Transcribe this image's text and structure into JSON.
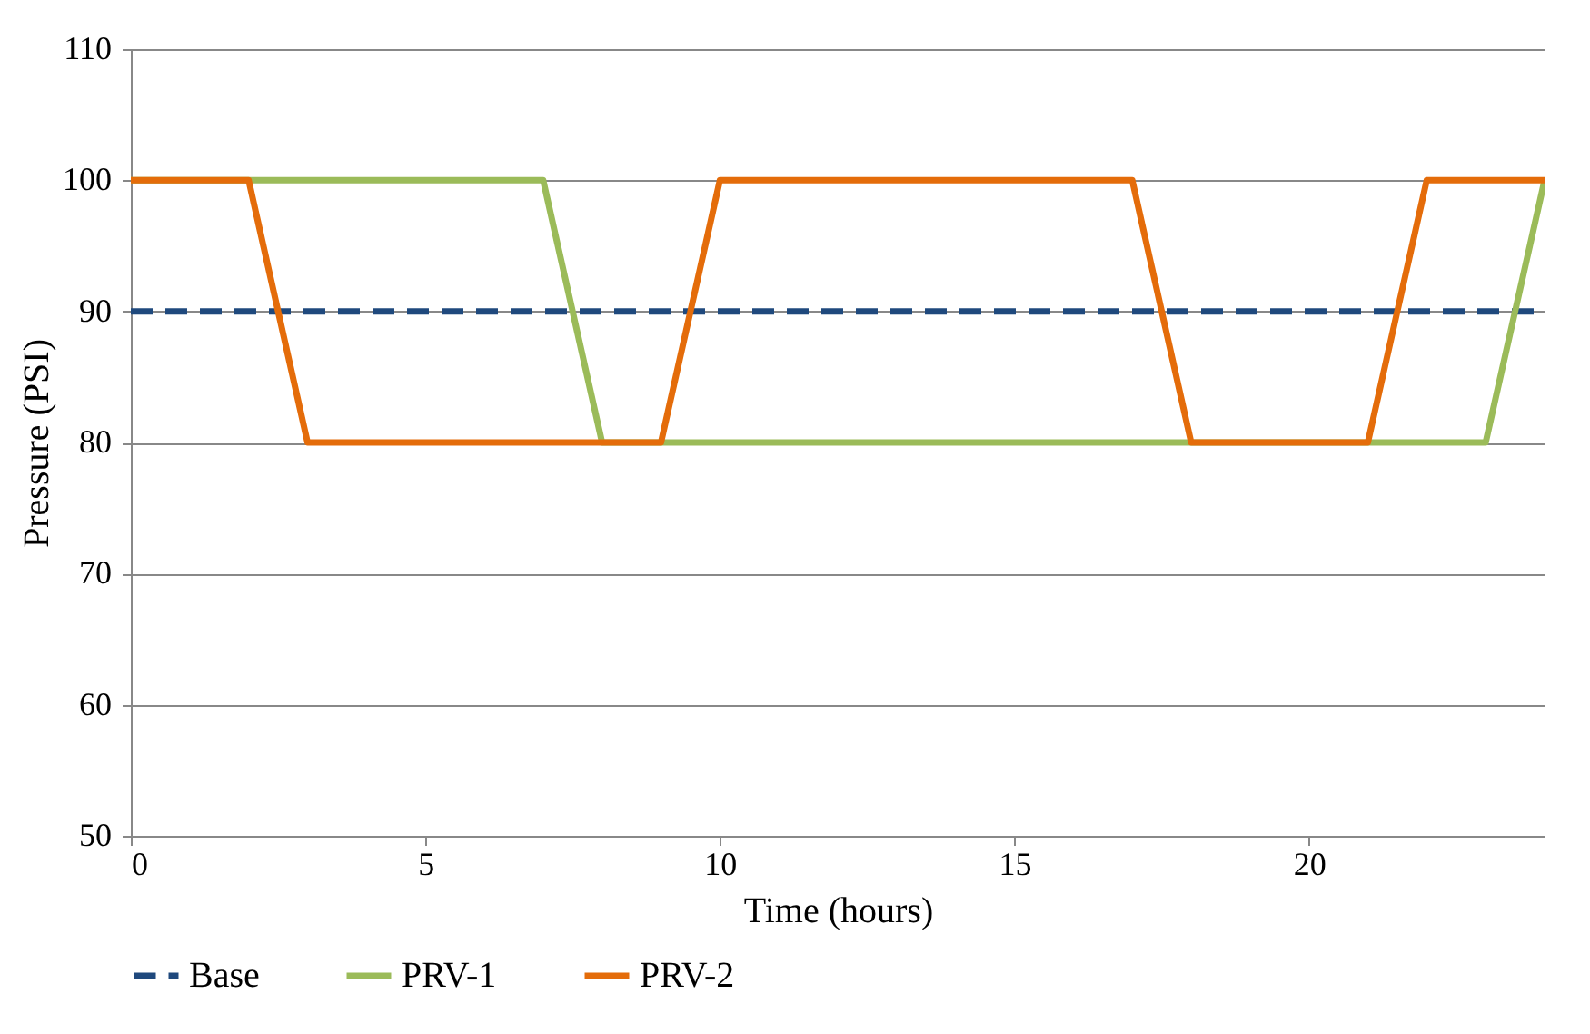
{
  "chart_data": {
    "type": "line",
    "xlabel": "Time (hours)",
    "ylabel": "Pressure (PSI)",
    "xlim": [
      0,
      24
    ],
    "xticks": [
      0,
      5,
      10,
      15,
      20
    ],
    "ylim": [
      50,
      110
    ],
    "yticks": [
      50,
      60,
      70,
      80,
      90,
      100,
      110
    ],
    "grid": "y",
    "legend": "bottom",
    "marker": "none",
    "series": [
      {
        "name": "Base",
        "color": "#1f497d",
        "line_style": "dashed",
        "x": [
          0,
          24
        ],
        "values": [
          90,
          90
        ]
      },
      {
        "name": "PRV-1",
        "color": "#9bbb59",
        "line_style": "solid",
        "x": [
          0,
          7,
          8,
          23,
          24
        ],
        "values": [
          100,
          100,
          80,
          80,
          100
        ]
      },
      {
        "name": "PRV-2",
        "color": "#e46c0a",
        "line_style": "solid",
        "x": [
          0,
          2,
          3,
          9,
          10,
          17,
          18,
          21,
          22,
          24
        ],
        "values": [
          100,
          100,
          80,
          80,
          100,
          100,
          80,
          80,
          100,
          100
        ]
      }
    ]
  }
}
